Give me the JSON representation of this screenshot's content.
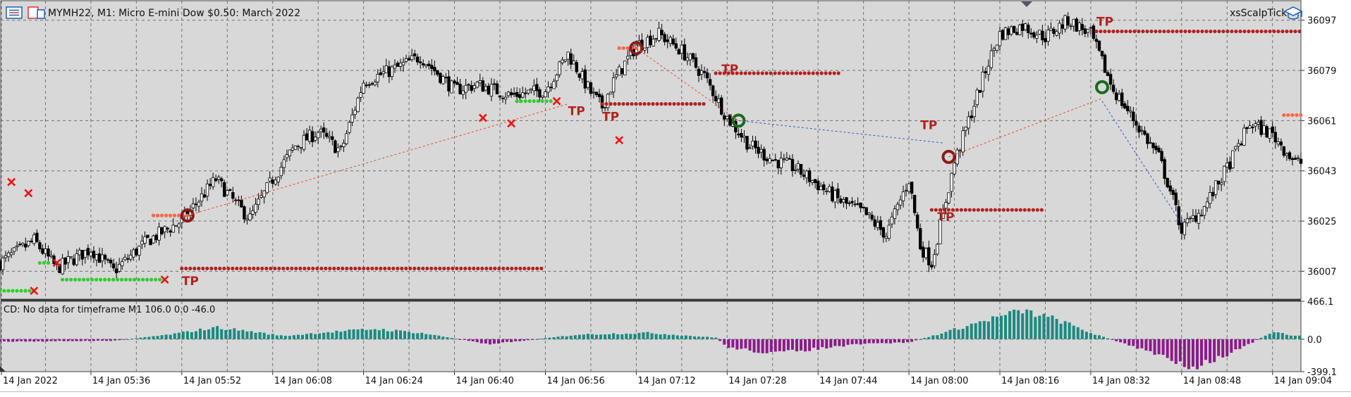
{
  "header": {
    "symbol_title": "MYMH22, M1:  Micro E-mini Dow $0.50: March 2022",
    "expert_name": "xsScalpTick",
    "menu_icon": "chart-menu-icon",
    "symbol_icon": "symbol-chart-icon",
    "expert_icon": "graduation-cap-icon"
  },
  "colors": {
    "background": "#d8d8d8",
    "grid": "#707070",
    "bull_candle": "#ffffff",
    "bear_candle": "#000000",
    "buy_marker": "#33cc33",
    "sell_marker": "#ff6644",
    "take_profit": "#b22222",
    "stop_cross": "#ee1111",
    "histogram_positive": "#1a8a80",
    "histogram_negative": "#8b1a8b"
  },
  "price_axis": {
    "ticks": [
      "36097",
      "36079",
      "36061",
      "36043",
      "36025",
      "36007"
    ],
    "tick_values": [
      36097,
      36079,
      36061,
      36043,
      36025,
      36007
    ],
    "range": [
      35997,
      36104
    ]
  },
  "trade_labels": [
    "TP",
    "TP",
    "TP",
    "TP",
    "TP",
    "TP",
    "TP"
  ],
  "indicator": {
    "label": "CD: No data for timeframe M1 106.0 0.0 -46.0",
    "ticks": [
      "466.1",
      "0.0",
      "-399.1"
    ],
    "tick_values": [
      466.1,
      0,
      -399.1
    ]
  },
  "time_axis": {
    "ticks": [
      "14 Jan 2022",
      "14 Jan 05:36",
      "14 Jan 05:52",
      "14 Jan 06:08",
      "14 Jan 06:24",
      "14 Jan 06:40",
      "14 Jan 06:56",
      "14 Jan 07:12",
      "14 Jan 07:28",
      "14 Jan 07:44",
      "14 Jan 08:00",
      "14 Jan 08:16",
      "14 Jan 08:32",
      "14 Jan 08:48",
      "14 Jan 09:04"
    ]
  },
  "chart_data": {
    "type": "candlestick",
    "title": "MYMH22, M1:  Micro E-mini Dow $0.50: March 2022",
    "xlabel": "",
    "ylabel": "",
    "ylim": [
      35997,
      36104
    ],
    "grid": true,
    "x_range": [
      "14 Jan 05:20",
      "14 Jan 09:09"
    ],
    "close_path": [
      [
        "14 Jan 05:20",
        36010
      ],
      [
        "14 Jan 05:26",
        36018
      ],
      [
        "14 Jan 05:30",
        36008
      ],
      [
        "14 Jan 05:36",
        36015
      ],
      [
        "14 Jan 05:40",
        36007
      ],
      [
        "14 Jan 05:46",
        36018
      ],
      [
        "14 Jan 05:52",
        36025
      ],
      [
        "14 Jan 05:58",
        36040
      ],
      [
        "14 Jan 06:02",
        36030
      ],
      [
        "14 Jan 06:04",
        36026
      ],
      [
        "14 Jan 06:08",
        36040
      ],
      [
        "14 Jan 06:12",
        36052
      ],
      [
        "14 Jan 06:16",
        36057
      ],
      [
        "14 Jan 06:20",
        36050
      ],
      [
        "14 Jan 06:24",
        36075
      ],
      [
        "14 Jan 06:30",
        36080
      ],
      [
        "14 Jan 06:34",
        36084
      ],
      [
        "14 Jan 06:40",
        36072
      ],
      [
        "14 Jan 06:44",
        36074
      ],
      [
        "14 Jan 06:50",
        36070
      ],
      [
        "14 Jan 06:56",
        36072
      ],
      [
        "14 Jan 07:00",
        36085
      ],
      [
        "14 Jan 07:04",
        36071
      ],
      [
        "14 Jan 07:06",
        36066
      ],
      [
        "14 Jan 07:08",
        36075
      ],
      [
        "14 Jan 07:12",
        36088
      ],
      [
        "14 Jan 07:16",
        36092
      ],
      [
        "14 Jan 07:20",
        36086
      ],
      [
        "14 Jan 07:24",
        36077
      ],
      [
        "14 Jan 07:28",
        36062
      ],
      [
        "14 Jan 07:32",
        36052
      ],
      [
        "14 Jan 07:36",
        36047
      ],
      [
        "14 Jan 07:40",
        36044
      ],
      [
        "14 Jan 07:44",
        36038
      ],
      [
        "14 Jan 07:48",
        36032
      ],
      [
        "14 Jan 07:52",
        36028
      ],
      [
        "14 Jan 07:56",
        36020
      ],
      [
        "14 Jan 08:00",
        36040
      ],
      [
        "14 Jan 08:02",
        36016
      ],
      [
        "14 Jan 08:04",
        36010
      ],
      [
        "14 Jan 08:06",
        36028
      ],
      [
        "14 Jan 08:08",
        36046
      ],
      [
        "14 Jan 08:10",
        36058
      ],
      [
        "14 Jan 08:14",
        36082
      ],
      [
        "14 Jan 08:16",
        36092
      ],
      [
        "14 Jan 08:20",
        36095
      ],
      [
        "14 Jan 08:24",
        36091
      ],
      [
        "14 Jan 08:28",
        36097
      ],
      [
        "14 Jan 08:32",
        36092
      ],
      [
        "14 Jan 08:36",
        36072
      ],
      [
        "14 Jan 08:40",
        36060
      ],
      [
        "14 Jan 08:44",
        36048
      ],
      [
        "14 Jan 08:46",
        36036
      ],
      [
        "14 Jan 08:48",
        36022
      ],
      [
        "14 Jan 08:52",
        36030
      ],
      [
        "14 Jan 08:56",
        36044
      ],
      [
        "14 Jan 09:00",
        36060
      ],
      [
        "14 Jan 09:04",
        36056
      ],
      [
        "14 Jan 09:08",
        36046
      ]
    ],
    "take_profit_levels": [
      {
        "from": "14 Jan 05:52",
        "to": "14 Jan 06:56",
        "price": 36008
      },
      {
        "from": "14 Jan 07:06",
        "to": "14 Jan 07:24",
        "price": 36067
      },
      {
        "from": "14 Jan 07:26",
        "to": "14 Jan 07:48",
        "price": 36078
      },
      {
        "from": "14 Jan 08:04",
        "to": "14 Jan 08:24",
        "price": 36029
      },
      {
        "from": "14 Jan 08:33",
        "to": "14 Jan 09:09",
        "price": 36093
      }
    ],
    "indicator_series": {
      "name": "CD",
      "ylim": [
        -399.1,
        466.1
      ],
      "profile": [
        [
          "14 Jan 05:20",
          -30
        ],
        [
          "14 Jan 05:40",
          -20
        ],
        [
          "14 Jan 05:50",
          60
        ],
        [
          "14 Jan 05:58",
          150
        ],
        [
          "14 Jan 06:04",
          100
        ],
        [
          "14 Jan 06:10",
          40
        ],
        [
          "14 Jan 06:16",
          80
        ],
        [
          "14 Jan 06:26",
          130
        ],
        [
          "14 Jan 06:34",
          80
        ],
        [
          "14 Jan 06:40",
          10
        ],
        [
          "14 Jan 06:46",
          -60
        ],
        [
          "14 Jan 06:52",
          -20
        ],
        [
          "14 Jan 07:02",
          60
        ],
        [
          "14 Jan 07:14",
          80
        ],
        [
          "14 Jan 07:26",
          20
        ],
        [
          "14 Jan 07:28",
          -100
        ],
        [
          "14 Jan 07:36",
          -180
        ],
        [
          "14 Jan 07:44",
          -120
        ],
        [
          "14 Jan 07:52",
          -60
        ],
        [
          "14 Jan 08:00",
          -40
        ],
        [
          "14 Jan 08:06",
          80
        ],
        [
          "14 Jan 08:14",
          250
        ],
        [
          "14 Jan 08:20",
          360
        ],
        [
          "14 Jan 08:26",
          250
        ],
        [
          "14 Jan 08:32",
          80
        ],
        [
          "14 Jan 08:38",
          -60
        ],
        [
          "14 Jan 08:46",
          -250
        ],
        [
          "14 Jan 08:50",
          -350
        ],
        [
          "14 Jan 08:56",
          -200
        ],
        [
          "14 Jan 09:00",
          -60
        ],
        [
          "14 Jan 09:04",
          100
        ],
        [
          "14 Jan 09:08",
          40
        ]
      ]
    }
  }
}
